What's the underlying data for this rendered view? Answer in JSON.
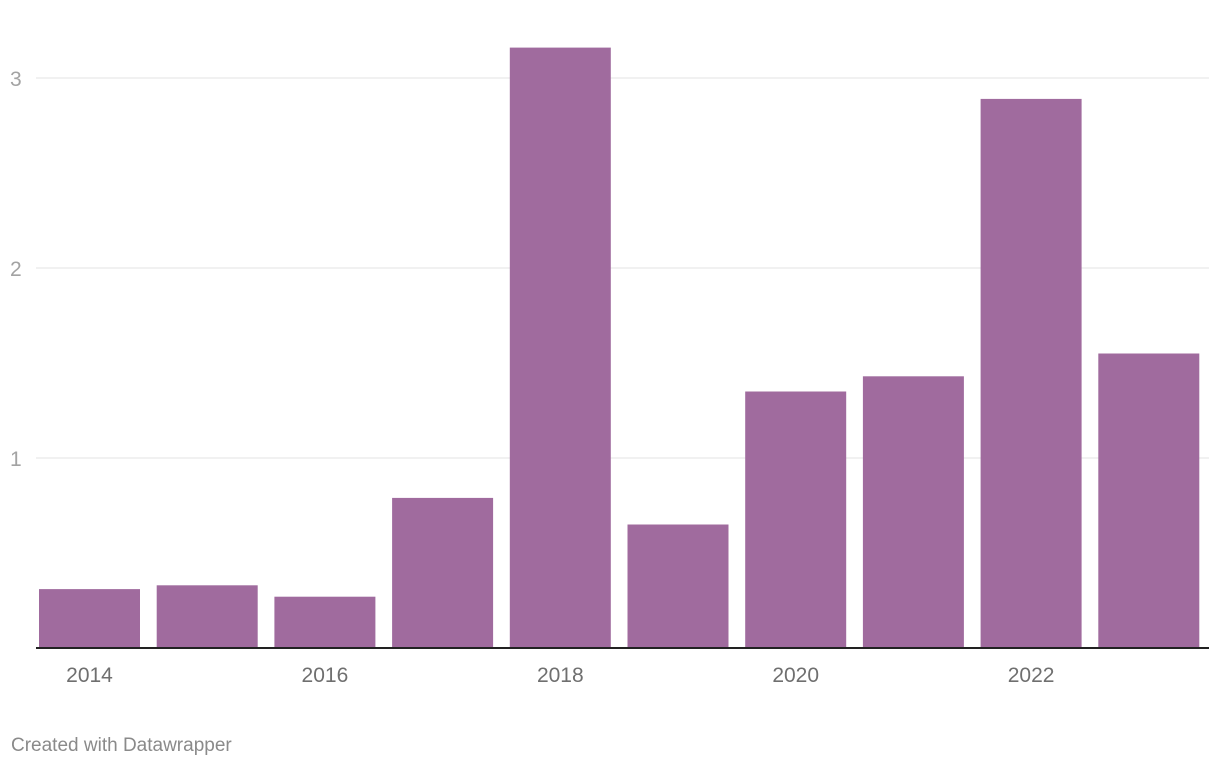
{
  "chart_data": {
    "type": "bar",
    "categories": [
      "2014",
      "2015",
      "2016",
      "2017",
      "2018",
      "2019",
      "2020",
      "2021",
      "2022",
      "2023"
    ],
    "values": [
      0.31,
      0.33,
      0.27,
      0.79,
      3.16,
      0.65,
      1.35,
      1.43,
      2.89,
      1.55
    ],
    "x_tick_labels": [
      "2014",
      "2016",
      "2018",
      "2020",
      "2022"
    ],
    "y_ticks": [
      1,
      2,
      3
    ],
    "ylim": [
      0,
      3.35
    ],
    "bar_color": "#a06b9e",
    "grid": true,
    "title": "",
    "xlabel": "",
    "ylabel": ""
  },
  "footer": {
    "credit": "Created with Datawrapper"
  }
}
